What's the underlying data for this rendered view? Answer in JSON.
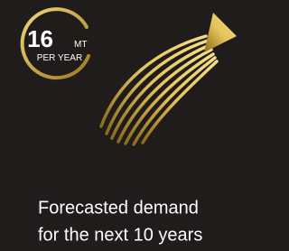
{
  "stat": {
    "value": "16",
    "unit": "MT",
    "period": "PER YEAR"
  },
  "caption": [
    "Forecasted demand",
    "for the next 10 years"
  ]
}
